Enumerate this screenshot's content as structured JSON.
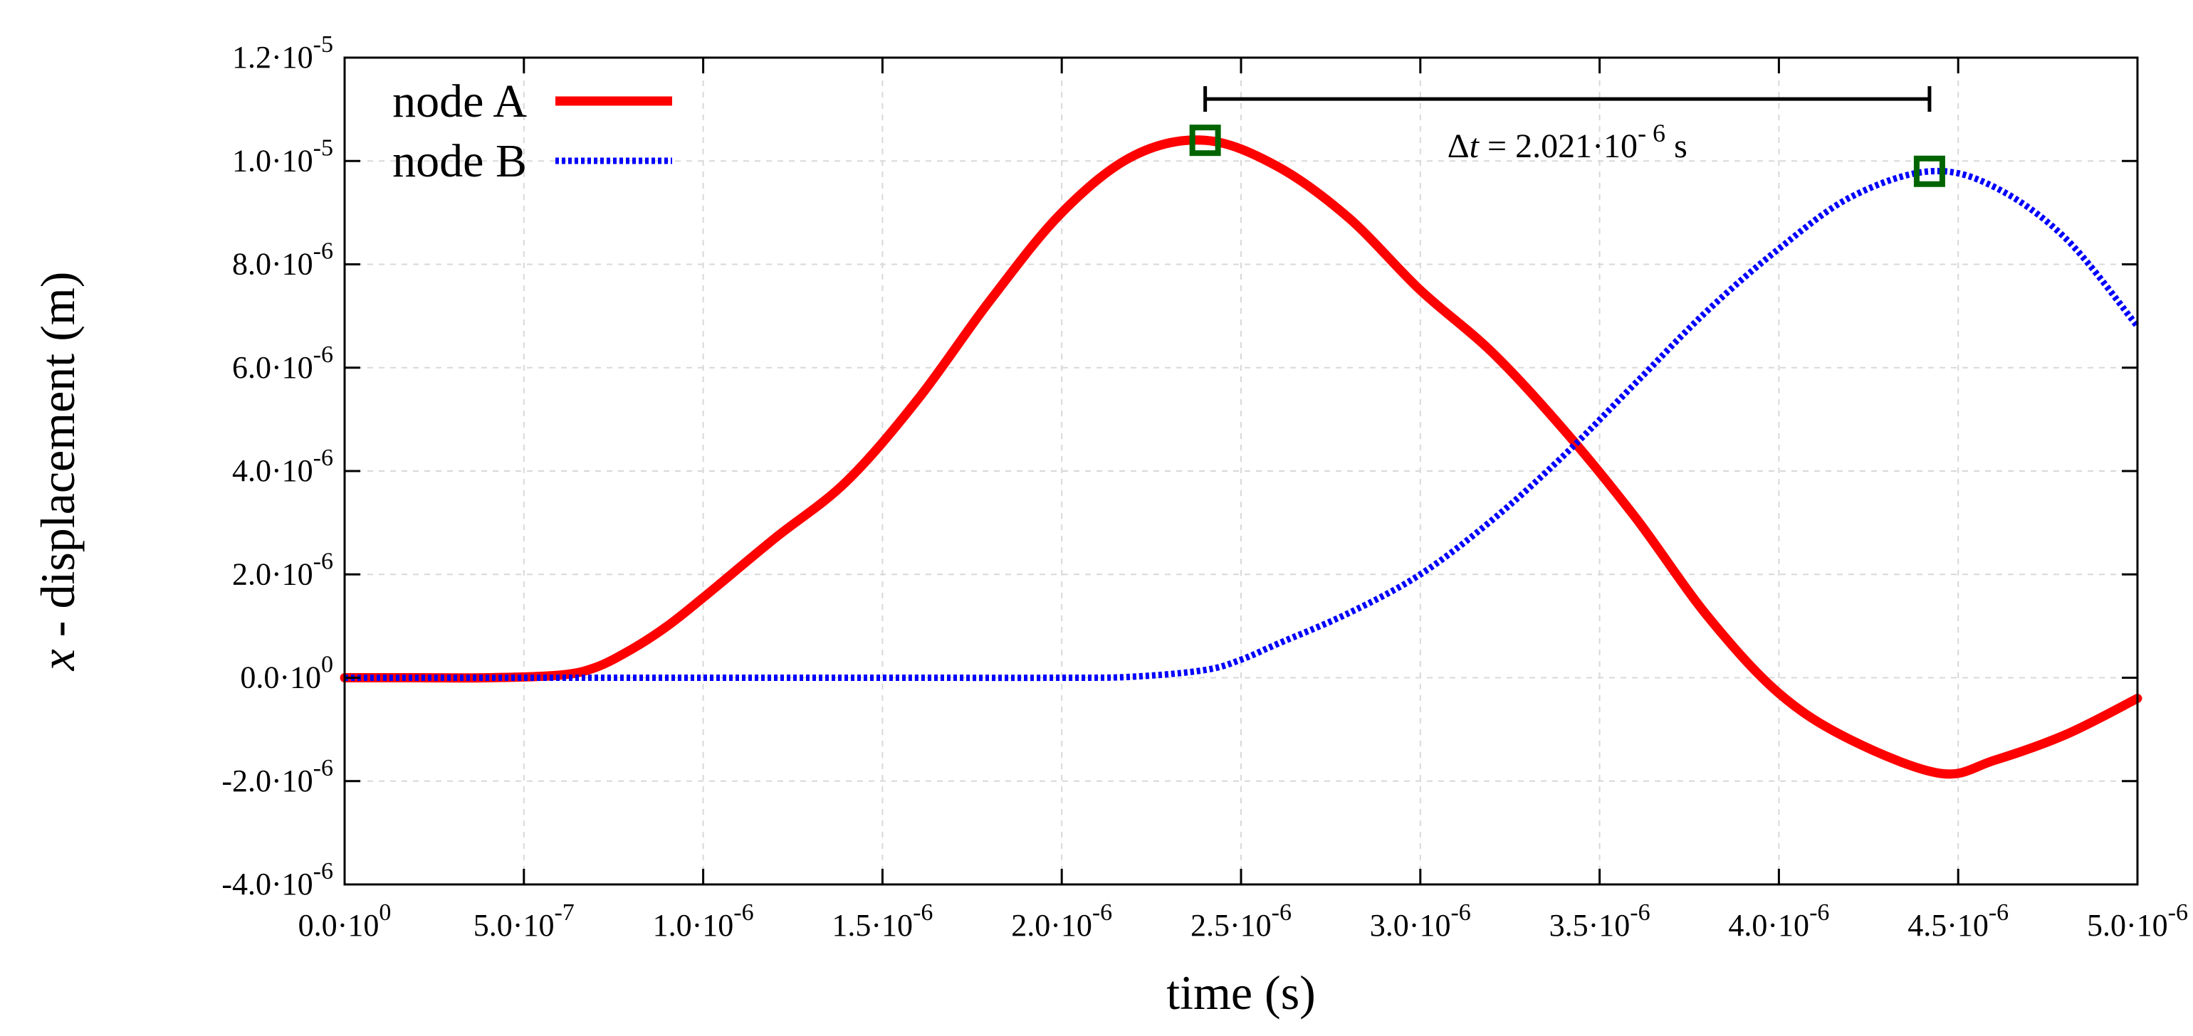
{
  "chart_data": {
    "type": "line",
    "title": "",
    "xlabel": "time (s)",
    "ylabel_italic": "x",
    "ylabel_rest": " - displacement (m)",
    "xlim": [
      0,
      5e-06
    ],
    "ylim": [
      -4e-06,
      1.2e-05
    ],
    "grid": true,
    "legend_position": "top-left",
    "x_ticks": [
      {
        "value": 0,
        "mant": "0.0·10",
        "exp": "0"
      },
      {
        "value": 5e-07,
        "mant": "5.0·10",
        "exp": "-7"
      },
      {
        "value": 1e-06,
        "mant": "1.0·10",
        "exp": "-6"
      },
      {
        "value": 1.5e-06,
        "mant": "1.5·10",
        "exp": "-6"
      },
      {
        "value": 2e-06,
        "mant": "2.0·10",
        "exp": "-6"
      },
      {
        "value": 2.5e-06,
        "mant": "2.5·10",
        "exp": "-6"
      },
      {
        "value": 3e-06,
        "mant": "3.0·10",
        "exp": "-6"
      },
      {
        "value": 3.5e-06,
        "mant": "3.5·10",
        "exp": "-6"
      },
      {
        "value": 4e-06,
        "mant": "4.0·10",
        "exp": "-6"
      },
      {
        "value": 4.5e-06,
        "mant": "4.5·10",
        "exp": "-6"
      },
      {
        "value": 5e-06,
        "mant": "5.0·10",
        "exp": "-6"
      }
    ],
    "y_ticks": [
      {
        "value": -4e-06,
        "mant": "-4.0·10",
        "exp": "-6"
      },
      {
        "value": -2e-06,
        "mant": "-2.0·10",
        "exp": "-6"
      },
      {
        "value": 0,
        "mant": "0.0·10",
        "exp": "0"
      },
      {
        "value": 2e-06,
        "mant": "2.0·10",
        "exp": "-6"
      },
      {
        "value": 4e-06,
        "mant": "4.0·10",
        "exp": "-6"
      },
      {
        "value": 6e-06,
        "mant": "6.0·10",
        "exp": "-6"
      },
      {
        "value": 8e-06,
        "mant": "8.0·10",
        "exp": "-6"
      },
      {
        "value": 1e-05,
        "mant": "1.0·10",
        "exp": "-5"
      },
      {
        "value": 1.2e-05,
        "mant": "1.2·10",
        "exp": "-5"
      }
    ],
    "series": [
      {
        "name": "node A",
        "color": "#ff0000",
        "style": "solid",
        "x": [
          0,
          2e-07,
          4e-07,
          6e-07,
          7e-07,
          8e-07,
          9e-07,
          1e-06,
          1.2e-06,
          1.4e-06,
          1.6e-06,
          1.8e-06,
          2e-06,
          2.2e-06,
          2.4e-06,
          2.6e-06,
          2.8e-06,
          3e-06,
          3.2e-06,
          3.4e-06,
          3.6e-06,
          3.8e-06,
          4e-06,
          4.2e-06,
          4.45e-06,
          4.6e-06,
          4.8e-06,
          5e-06
        ],
        "y": [
          0,
          0,
          0,
          5e-08,
          2e-07,
          5.5e-07,
          1e-06,
          1.55e-06,
          2.7e-06,
          3.8e-06,
          5.4e-06,
          7.3e-06,
          9e-06,
          1.01e-05,
          1.04e-05,
          9.9e-06,
          8.9e-06,
          7.5e-06,
          6.3e-06,
          4.8e-06,
          3.1e-06,
          1.2e-06,
          -3e-07,
          -1.2e-06,
          -1.85e-06,
          -1.6e-06,
          -1.1e-06,
          -4e-07
        ]
      },
      {
        "name": "node B",
        "color": "#0000ff",
        "style": "dotted",
        "x": [
          0,
          5e-07,
          1e-06,
          1.5e-06,
          2e-06,
          2.2e-06,
          2.4e-06,
          2.5e-06,
          2.6e-06,
          2.8e-06,
          3e-06,
          3.2e-06,
          3.4e-06,
          3.6e-06,
          3.8e-06,
          4e-06,
          4.2e-06,
          4.42e-06,
          4.6e-06,
          4.8e-06,
          5e-06
        ],
        "y": [
          0,
          0,
          0,
          0,
          0,
          2e-08,
          1.5e-07,
          3.5e-07,
          6.5e-07,
          1.25e-06,
          2e-06,
          3.05e-06,
          4.3e-06,
          5.7e-06,
          7.1e-06,
          8.3e-06,
          9.3e-06,
          9.8e-06,
          9.5e-06,
          8.5e-06,
          6.8e-06
        ]
      }
    ],
    "markers": [
      {
        "x": 2.4e-06,
        "y": 1.04e-05,
        "color": "#006400"
      },
      {
        "x": 4.42e-06,
        "y": 9.8e-06,
        "color": "#006400"
      }
    ],
    "annotation": {
      "x_start": 2.4e-06,
      "x_end": 4.42e-06,
      "y": 1.12e-05,
      "delta_symbol": "Δ",
      "delta_var": "t",
      "value_text": " = 2.021·10",
      "value_exp": "- 6",
      "unit": " s"
    }
  }
}
